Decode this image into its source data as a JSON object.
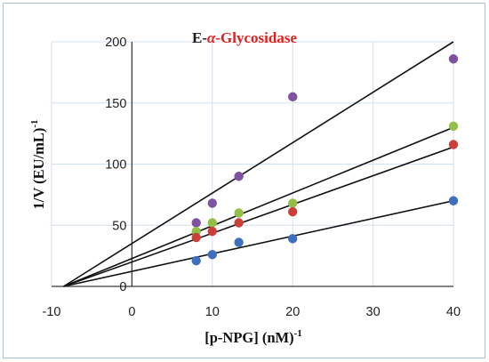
{
  "chart_data": {
    "type": "scatter",
    "title": {
      "prefix": "E-",
      "greek": "α",
      "suffix": "-Glycosidase",
      "prefix_color": "#1a1a1a",
      "accent_color": "#e21e1e"
    },
    "xlabel": {
      "text": "[p-NPG] (nM)",
      "sup": "-1"
    },
    "ylabel": {
      "text": "1/V (EU/mL)",
      "sup": "-1"
    },
    "xlim": [
      -10,
      40
    ],
    "ylim": [
      0,
      200
    ],
    "x_ticks": [
      "-10",
      "0",
      "10",
      "20",
      "30",
      "40"
    ],
    "y_ticks": [
      "0",
      "50",
      "100",
      "150",
      "200"
    ],
    "grid": true,
    "series": [
      {
        "color": "#7e52a0",
        "points": [
          [
            8,
            52
          ],
          [
            10,
            68
          ],
          [
            13.3,
            90
          ],
          [
            20,
            155
          ],
          [
            40,
            186
          ]
        ],
        "fit": {
          "x0": -8.5,
          "x1": 40,
          "y1": 200
        }
      },
      {
        "color": "#94bf47",
        "points": [
          [
            8,
            45
          ],
          [
            10,
            52
          ],
          [
            13.3,
            60
          ],
          [
            20,
            68
          ],
          [
            40,
            131
          ]
        ],
        "fit": {
          "x0": -8.5,
          "x1": 40,
          "y1": 130
        }
      },
      {
        "color": "#cc3e3a",
        "points": [
          [
            8,
            40
          ],
          [
            10,
            45
          ],
          [
            13.3,
            52
          ],
          [
            20,
            61
          ],
          [
            40,
            116
          ]
        ],
        "fit": {
          "x0": -8.5,
          "x1": 40,
          "y1": 114
        }
      },
      {
        "color": "#3e6fbe",
        "points": [
          [
            8,
            21
          ],
          [
            10,
            26
          ],
          [
            13.3,
            36
          ],
          [
            20,
            39
          ],
          [
            40,
            70
          ]
        ],
        "fit": {
          "x0": -8.5,
          "x1": 40,
          "y1": 70
        }
      }
    ]
  }
}
